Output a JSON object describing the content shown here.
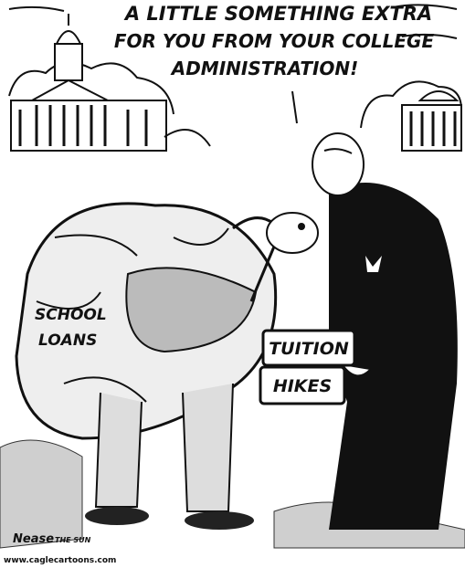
{
  "caption": {
    "lines": [
      "A LITTLE SOMETHING EXTRA",
      "FOR YOU FROM YOUR COLLEGE",
      "ADMINISTRATION!"
    ]
  },
  "bag_label": {
    "lines": [
      "SCHOOL",
      "LOANS"
    ]
  },
  "book_labels": [
    "TUITION",
    "HIKES"
  ],
  "signature": {
    "artist": "Nease",
    "paper": "THE SUN"
  },
  "credit": "www.caglecartoons.com"
}
